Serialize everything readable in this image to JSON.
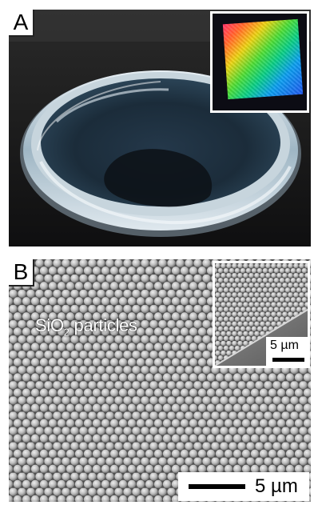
{
  "panel_a": {
    "label": "A"
  },
  "panel_b": {
    "label": "B",
    "particle_label_main": "SiO",
    "particle_label_sub": "2",
    "particle_label_rest": " particles",
    "scale_bar_main": "5 µm",
    "scale_bar_inset": "5 µm"
  },
  "colors": {
    "sem_background": "#5a5a5a",
    "particle": "#c8c8c8",
    "dish_surface": "#1c2a32"
  }
}
